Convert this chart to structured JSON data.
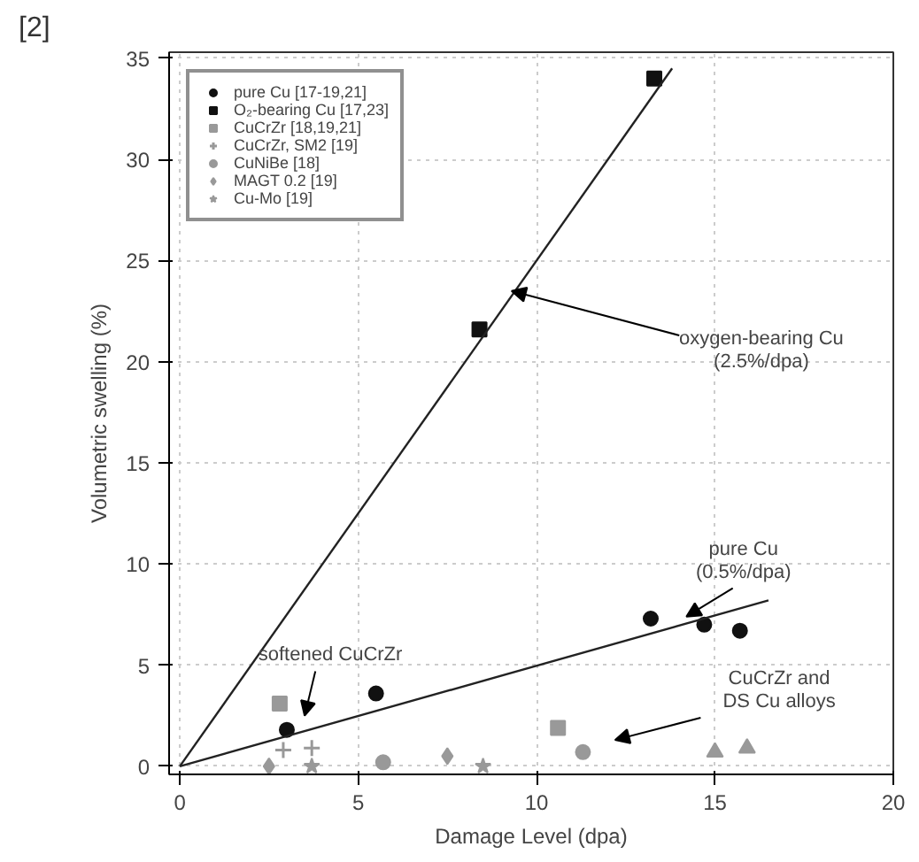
{
  "chart_data": {
    "type": "scatter",
    "xlabel": "Damage Level (dpa)",
    "ylabel": "Volumetric swelling (%)",
    "xlim": [
      -0.3,
      20
    ],
    "ylim": [
      -0.4,
      35.3
    ],
    "xticks": [
      0,
      5,
      10,
      15,
      20
    ],
    "yticks": [
      0,
      5,
      10,
      15,
      20,
      25,
      30,
      35
    ],
    "grid": true,
    "legend": "top left",
    "series": [
      {
        "name": "pure Cu [17-19,21]",
        "color": "#111111",
        "marker": "circle",
        "x": [
          3.0,
          5.5,
          13.2,
          14.7,
          15.7
        ],
        "values": [
          1.8,
          3.6,
          7.3,
          7.0,
          6.7
        ]
      },
      {
        "name": "O₂-bearing Cu [17,23]",
        "color": "#111111",
        "marker": "square",
        "x": [
          8.4,
          13.3
        ],
        "values": [
          21.6,
          34.0
        ]
      },
      {
        "name": "CuCrZr [18,19,21]",
        "color": "#999999",
        "marker": "square",
        "x": [
          2.8,
          10.6
        ],
        "values": [
          3.1,
          1.9
        ]
      },
      {
        "name": "CuCrZr, SM2 [19]",
        "color": "#999999",
        "marker": "cross",
        "x": [
          2.9,
          3.7
        ],
        "values": [
          0.8,
          0.9
        ]
      },
      {
        "name": "CuNiBe [18]",
        "color": "#999999",
        "marker": "circle",
        "x": [
          5.7,
          11.3
        ],
        "values": [
          0.2,
          0.7
        ]
      },
      {
        "color": "#999999",
        "marker": "triangle",
        "x": [
          15.0,
          15.9
        ],
        "values": [
          0.7,
          0.9
        ]
      },
      {
        "name": "MAGT 0.2 [19]",
        "color": "#999999",
        "marker": "diamond",
        "x": [
          2.5,
          7.5
        ],
        "values": [
          0.0,
          0.5
        ]
      },
      {
        "name": "Cu-Mo [19]",
        "color": "#999999",
        "marker": "star",
        "x": [
          3.7,
          8.5
        ],
        "values": [
          0.0,
          0.0
        ]
      },
      {
        "type": "line",
        "color": "#222222",
        "marker": "none",
        "x": [
          0,
          13.8
        ],
        "values": [
          0,
          34.5
        ]
      },
      {
        "type": "line",
        "color": "#222222",
        "marker": "none",
        "x": [
          0,
          16.5
        ],
        "values": [
          0,
          8.2
        ]
      }
    ],
    "annotations": [
      "[2]",
      {
        "text": "oxygen-bearing Cu\n(2.5%/dpa)",
        "x": 9.3,
        "y": 23.5
      },
      {
        "text": "pure Cu\n(0.5%/dpa)",
        "x": 14.2,
        "y": 7.4
      },
      "softened CuCrZr",
      "CuCrZr and\nDS Cu alloys"
    ]
  }
}
